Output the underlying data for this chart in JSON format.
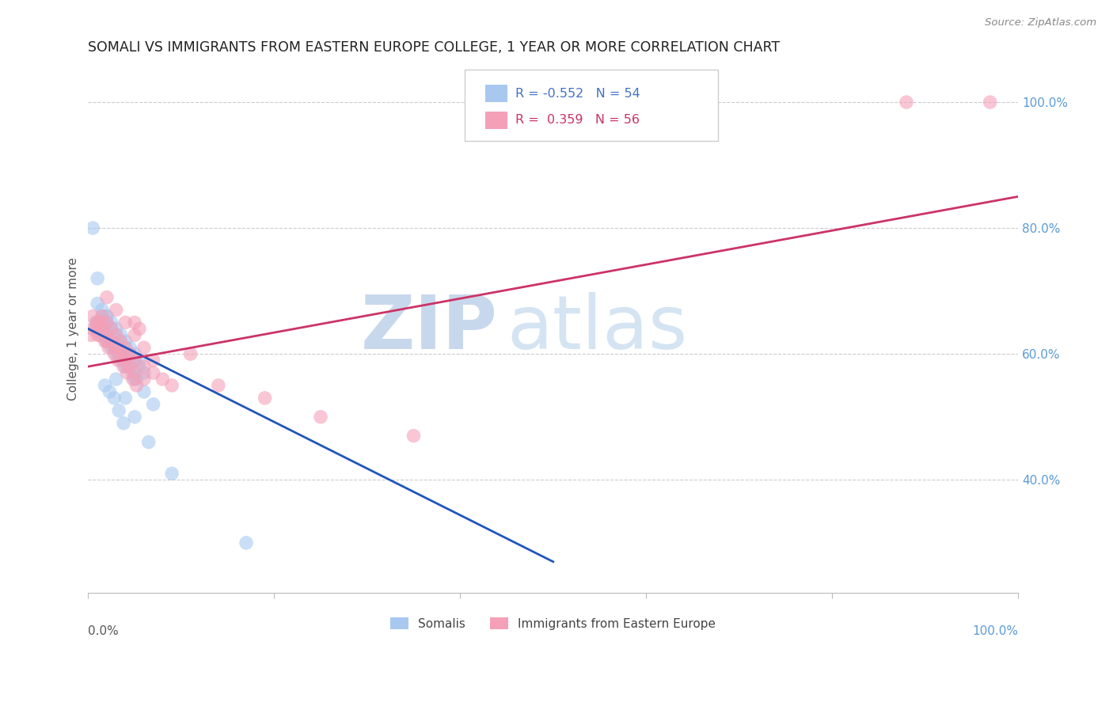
{
  "title": "SOMALI VS IMMIGRANTS FROM EASTERN EUROPE COLLEGE, 1 YEAR OR MORE CORRELATION CHART",
  "source": "Source: ZipAtlas.com",
  "ylabel": "College, 1 year or more",
  "legend_label1": "Somalis",
  "legend_label2": "Immigrants from Eastern Europe",
  "R1": "-0.552",
  "N1": "54",
  "R2": "0.359",
  "N2": "56",
  "color_blue": "#A8C8F0",
  "color_pink": "#F4A0B8",
  "line_blue": "#2255BB",
  "line_pink": "#CC3366",
  "blue_line_x0": 0,
  "blue_line_y0": 64,
  "blue_line_x1": 50,
  "blue_line_y1": 27,
  "pink_line_x0": 0,
  "pink_line_y0": 58,
  "pink_line_x1": 100,
  "pink_line_y1": 85,
  "xlim": [
    0,
    100
  ],
  "ylim": [
    22,
    106
  ],
  "yticks": [
    40,
    60,
    80,
    100
  ],
  "ytick_labels": [
    "40.0%",
    "60.0%",
    "80.0%",
    "100.0%"
  ],
  "somali_x": [
    1.5,
    2.0,
    2.5,
    3.0,
    3.5,
    4.0,
    4.5,
    5.0,
    5.5,
    6.0,
    1.0,
    1.5,
    2.0,
    2.5,
    3.0,
    3.5,
    4.0,
    4.5,
    5.0,
    5.5,
    0.8,
    1.2,
    1.8,
    2.2,
    2.8,
    3.2,
    3.8,
    4.2,
    4.8,
    5.2,
    1.0,
    1.5,
    2.0,
    2.5,
    3.0,
    3.5,
    4.0,
    5.0,
    6.0,
    7.0,
    0.5,
    1.0,
    2.0,
    3.0,
    4.0,
    5.0,
    6.5,
    9.0,
    17.0,
    1.8,
    2.3,
    2.8,
    3.3,
    3.8
  ],
  "somali_y": [
    66,
    65,
    64,
    63,
    62,
    61,
    60,
    59,
    58,
    57,
    68,
    67,
    66,
    65,
    64,
    63,
    62,
    61,
    60,
    59,
    65,
    64,
    63,
    62,
    61,
    60,
    59,
    58,
    57,
    56,
    64,
    63,
    62,
    61,
    60,
    59,
    58,
    56,
    54,
    52,
    80,
    72,
    66,
    56,
    53,
    50,
    46,
    41,
    30,
    55,
    54,
    53,
    51,
    49
  ],
  "eastern_x": [
    1.0,
    1.5,
    2.0,
    2.5,
    3.0,
    3.5,
    4.0,
    4.5,
    5.0,
    5.5,
    0.8,
    1.2,
    1.8,
    2.2,
    2.8,
    3.2,
    3.8,
    4.2,
    4.8,
    5.2,
    1.0,
    1.5,
    2.0,
    2.5,
    3.0,
    3.5,
    4.0,
    4.5,
    5.0,
    6.0,
    0.5,
    1.0,
    2.0,
    3.0,
    4.0,
    5.0,
    6.0,
    7.0,
    8.0,
    9.0,
    2.0,
    3.0,
    4.0,
    5.0,
    6.0,
    7.0,
    0.5,
    1.5,
    0.3,
    88.0,
    97.0,
    14.0,
    25.0,
    35.0,
    11.0,
    19.0
  ],
  "eastern_y": [
    65,
    66,
    65,
    64,
    63,
    62,
    61,
    60,
    65,
    64,
    64,
    63,
    62,
    61,
    60,
    59,
    58,
    57,
    56,
    55,
    65,
    64,
    63,
    62,
    61,
    60,
    59,
    58,
    57,
    56,
    64,
    63,
    62,
    61,
    60,
    59,
    58,
    57,
    56,
    55,
    69,
    67,
    65,
    63,
    61,
    59,
    66,
    65,
    63,
    100,
    100,
    55,
    50,
    47,
    60,
    53
  ]
}
